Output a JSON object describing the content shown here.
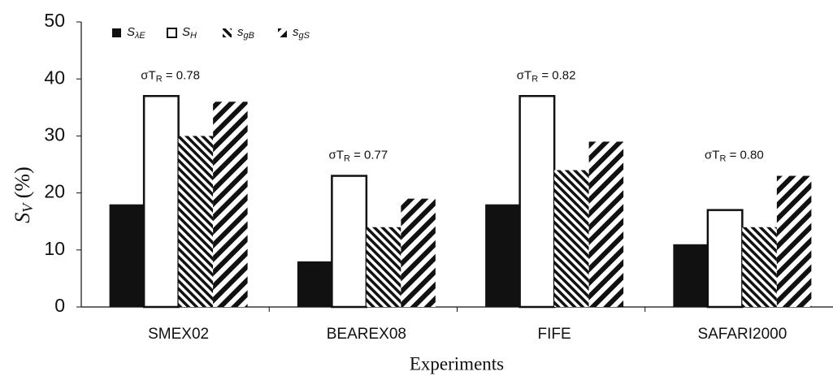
{
  "chart_data": {
    "type": "bar",
    "y_label": {
      "text": "S",
      "subscript": "V",
      "suffix": " (%)"
    },
    "x_label": "Experiments",
    "categories": [
      "SMEX02",
      "BEAREX08",
      "FIFE",
      "SAFARI2000"
    ],
    "series": [
      {
        "name": "S",
        "name_subscript": "λE",
        "color": "#111111",
        "pattern": "solid",
        "values": [
          18,
          8,
          18,
          11
        ]
      },
      {
        "name": "S",
        "name_subscript": "H",
        "color": "#111111",
        "pattern": "hollow",
        "values": [
          37,
          23,
          37,
          17
        ]
      },
      {
        "name": "s",
        "name_subscript": "gB",
        "color": "#111111",
        "pattern": "dense-hatch",
        "values": [
          30,
          14,
          24,
          14
        ]
      },
      {
        "name": "s",
        "name_subscript": "gS",
        "color": "#111111",
        "pattern": "wide-hatch",
        "values": [
          36,
          19,
          29,
          23
        ]
      }
    ],
    "annotations": [
      {
        "label": "σT",
        "subscript": "R",
        "text": " = 0.78"
      },
      {
        "label": "σT",
        "subscript": "R",
        "text": " = 0.77"
      },
      {
        "label": "σT",
        "subscript": "R",
        "text": " = 0.82"
      },
      {
        "label": "σT",
        "subscript": "R",
        "text": " = 0.80"
      }
    ],
    "ylim": [
      0,
      50
    ],
    "yticks": [
      0,
      10,
      20,
      30,
      40,
      50
    ],
    "grid": false,
    "legend": "top-left"
  }
}
